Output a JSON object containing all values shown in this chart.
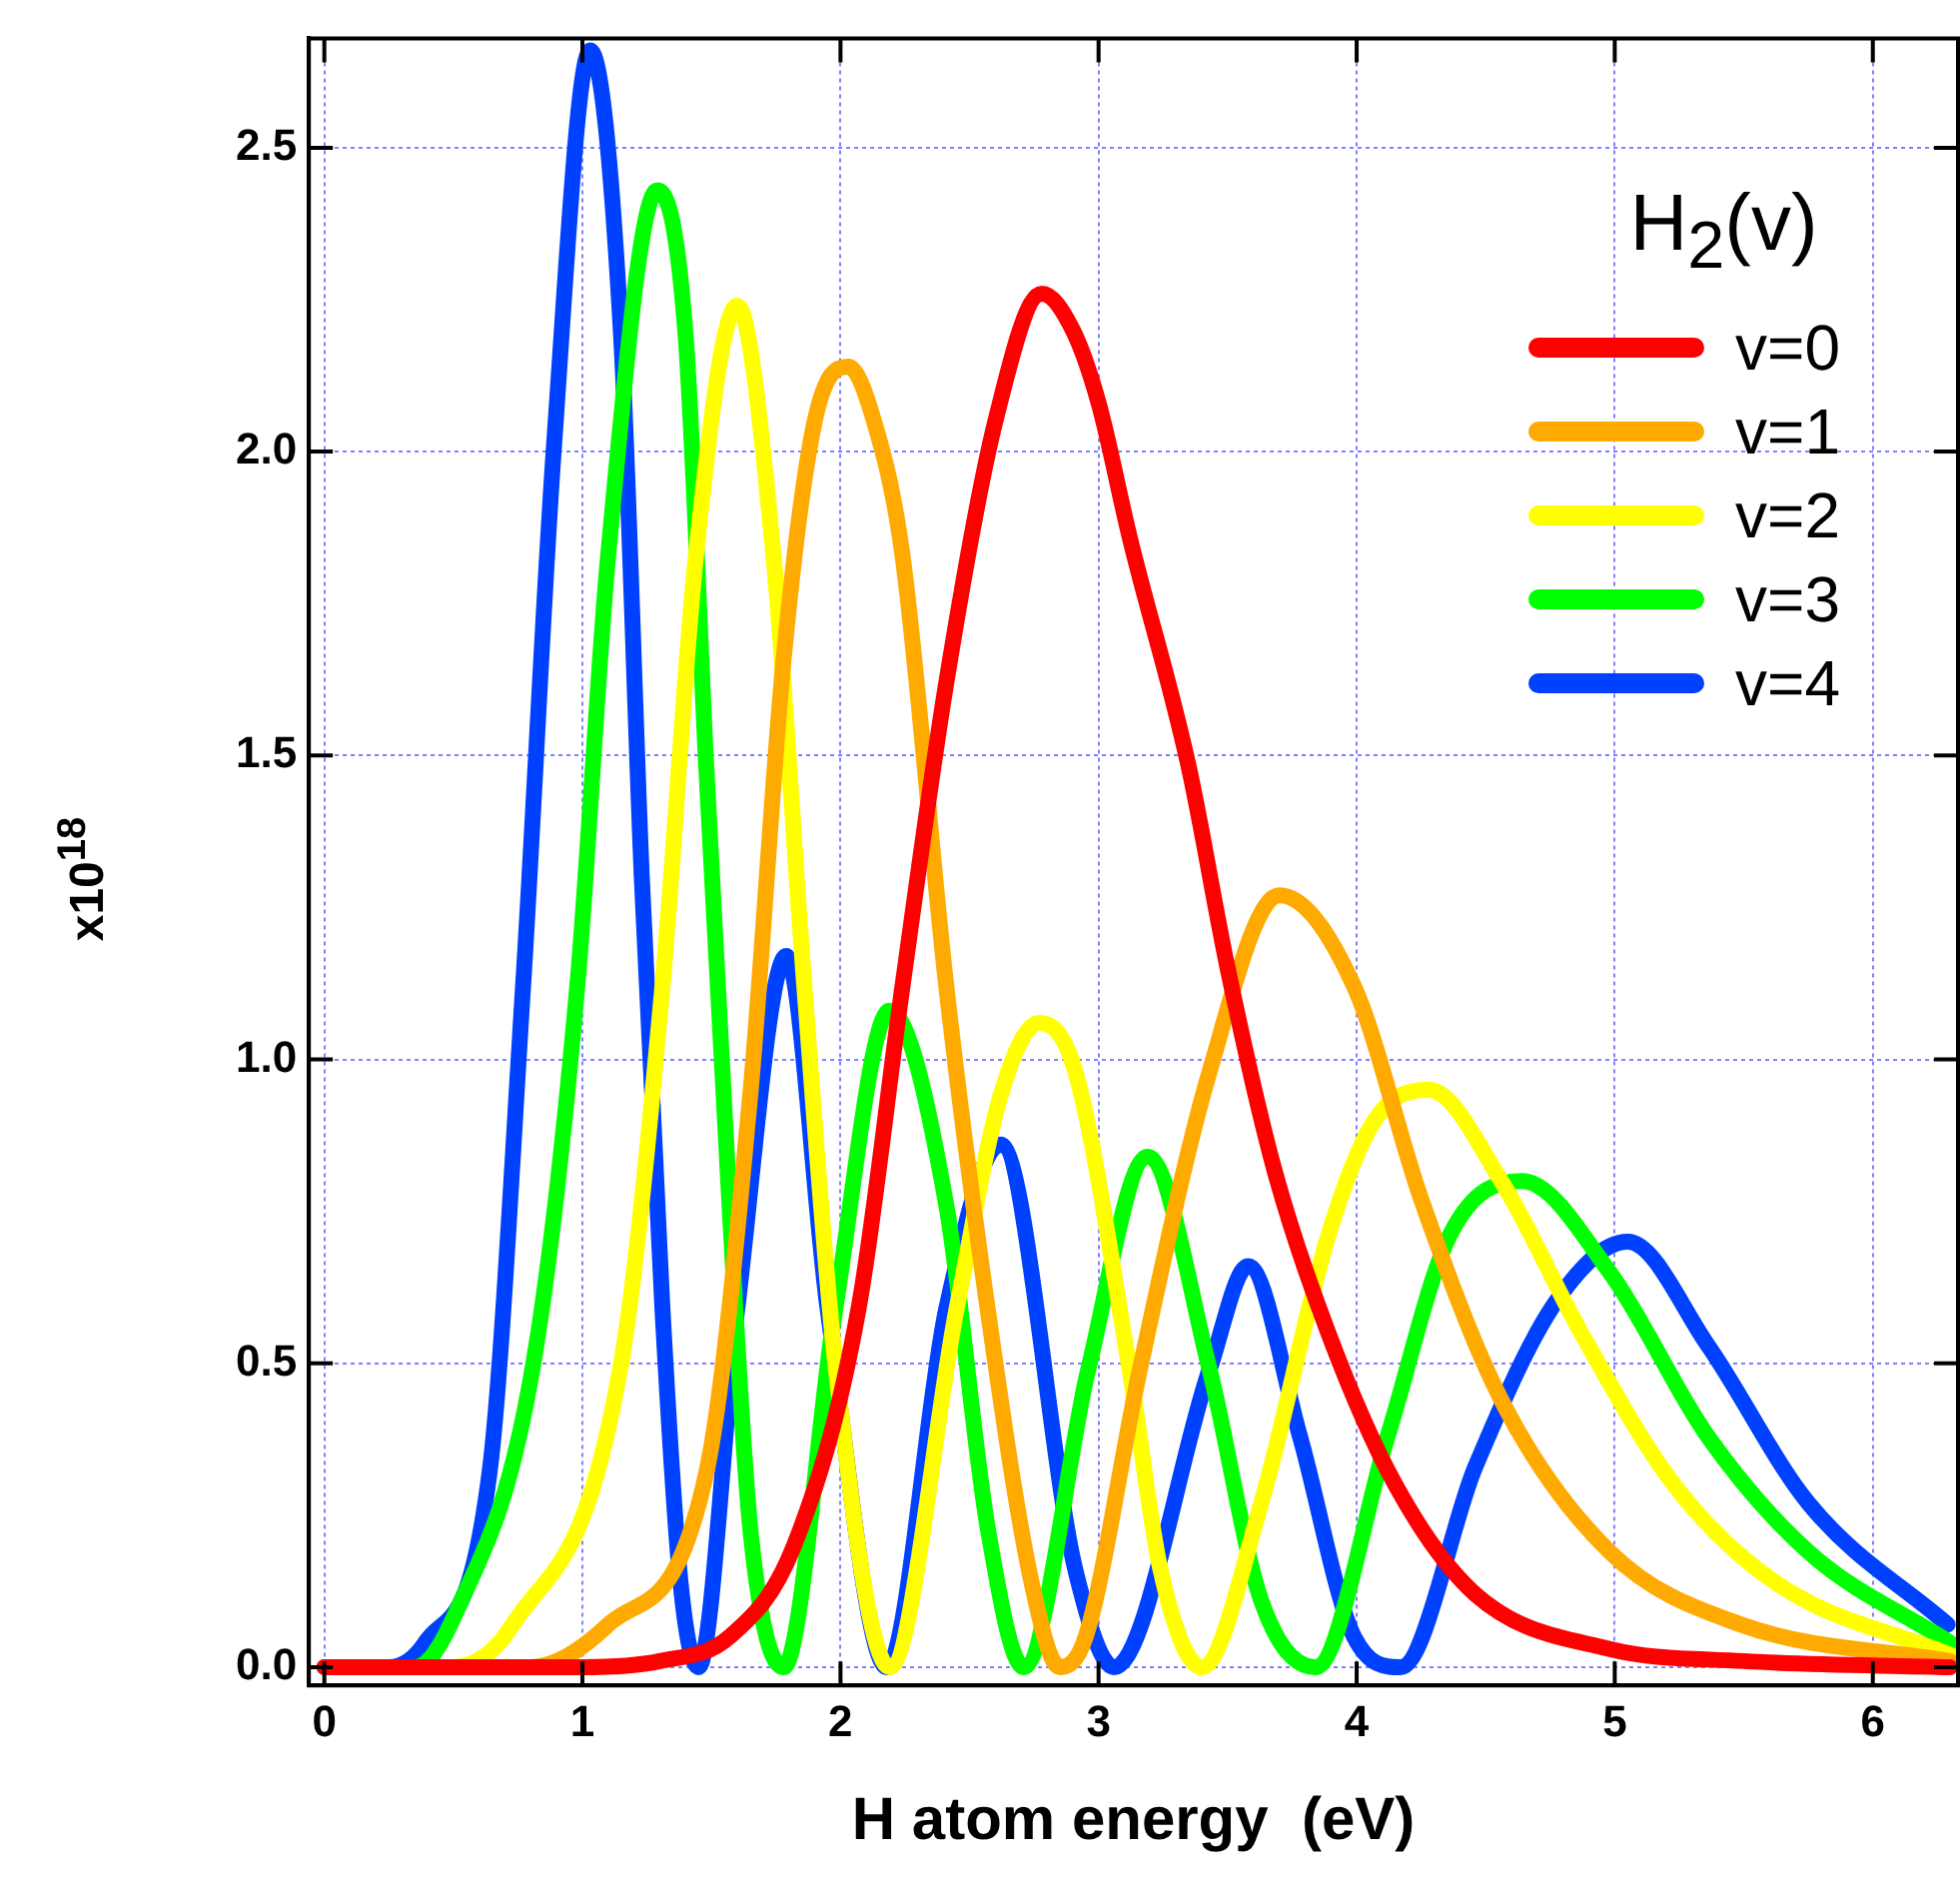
{
  "chart_data": {
    "type": "line",
    "xlabel": "H atom energy  (eV)",
    "ylabel": "x10$^{18}$",
    "legend_title": "H$_{2}$(v)",
    "legend": "top right",
    "grid": true,
    "marker": "none",
    "line_style": "solid",
    "xlim": [
      -0.06,
      6.33
    ],
    "xticks": [
      0,
      1,
      2,
      3,
      4,
      5,
      6
    ],
    "ylim": [
      -0.03,
      2.68
    ],
    "yticks": [
      {
        "value": 0,
        "label": "0.0"
      },
      {
        "value": 0.5,
        "label": "0.5"
      },
      {
        "value": 1,
        "label": "1.0"
      },
      {
        "value": 1.5,
        "label": "1.5"
      },
      {
        "value": 2,
        "label": "2.0"
      },
      {
        "value": 2.5,
        "label": "2.5"
      }
    ],
    "series": [
      {
        "name": "v=0",
        "color": "#ff0000",
        "x": [
          0,
          1.0,
          1.3,
          1.57,
          1.82,
          2.07,
          2.24,
          2.41,
          2.6,
          2.78,
          2.9,
          3.0,
          3.12,
          3.35,
          3.5,
          3.68,
          3.89,
          4.15,
          4.46,
          4.98,
          5.5,
          6.3
        ],
        "values": [
          0,
          0,
          0.01,
          0.05,
          0.2,
          0.59,
          1.12,
          1.62,
          2.05,
          2.26,
          2.2,
          2.08,
          1.86,
          1.48,
          1.15,
          0.82,
          0.55,
          0.3,
          0.12,
          0.03,
          0.01,
          0
        ]
      },
      {
        "name": "v=1",
        "color": "#ffaa00",
        "x": [
          0,
          0.8,
          1.1,
          1.48,
          1.65,
          1.78,
          1.9,
          2.03,
          2.13,
          2.24,
          2.41,
          2.57,
          2.74,
          2.85,
          2.95,
          3.16,
          3.43,
          3.7,
          3.99,
          4.25,
          4.56,
          4.98,
          5.49,
          6.3
        ],
        "values": [
          0,
          0,
          0.07,
          0.32,
          0.94,
          1.66,
          2.05,
          2.14,
          2.05,
          1.83,
          1.12,
          0.59,
          0.14,
          0,
          0.05,
          0.49,
          0.98,
          1.27,
          1.12,
          0.77,
          0.44,
          0.19,
          0.07,
          0.01
        ]
      },
      {
        "name": "v=2",
        "color": "#ffff00",
        "x": [
          0,
          0.5,
          0.73,
          1.15,
          1.31,
          1.44,
          1.6,
          1.74,
          1.86,
          1.98,
          2.19,
          2.45,
          2.62,
          2.77,
          2.91,
          3.12,
          3.24,
          3.4,
          3.63,
          3.89,
          4.07,
          4.28,
          4.56,
          4.87,
          5.23,
          5.62,
          6.3
        ],
        "values": [
          0,
          0,
          0.07,
          0.5,
          1.12,
          1.83,
          2.24,
          1.83,
          1.12,
          0.5,
          0,
          0.59,
          0.94,
          1.06,
          0.98,
          0.49,
          0.16,
          0,
          0.27,
          0.71,
          0.9,
          0.95,
          0.8,
          0.55,
          0.3,
          0.14,
          0.02
        ]
      },
      {
        "name": "v=3",
        "color": "#00ff00",
        "x": [
          0,
          0.35,
          0.51,
          0.81,
          0.98,
          1.1,
          1.29,
          1.4,
          1.48,
          1.57,
          1.65,
          1.78,
          1.98,
          2.19,
          2.41,
          2.57,
          2.71,
          2.96,
          3.19,
          3.43,
          3.63,
          3.84,
          4.12,
          4.36,
          4.64,
          4.98,
          5.36,
          5.75,
          6.3
        ],
        "values": [
          0,
          0,
          0.09,
          0.5,
          1.12,
          1.83,
          2.43,
          2.19,
          1.48,
          0.76,
          0.23,
          0,
          0.59,
          1.08,
          0.76,
          0.23,
          0,
          0.49,
          0.84,
          0.49,
          0.11,
          0,
          0.38,
          0.71,
          0.8,
          0.65,
          0.38,
          0.19,
          0.04
        ]
      },
      {
        "name": "v=4",
        "color": "#0040ff",
        "x": [
          0,
          0.25,
          0.39,
          0.64,
          0.77,
          0.89,
          1.03,
          1.15,
          1.23,
          1.31,
          1.38,
          1.45,
          1.6,
          1.79,
          1.95,
          2.18,
          2.41,
          2.62,
          2.91,
          3.06,
          3.43,
          3.58,
          3.78,
          3.99,
          4.17,
          4.46,
          4.77,
          5.05,
          5.36,
          5.75,
          6.29
        ],
        "values": [
          0,
          0,
          0.04,
          0.32,
          1.12,
          2.01,
          2.66,
          2.19,
          1.3,
          0.59,
          0.14,
          0,
          0.59,
          1.17,
          0.59,
          0,
          0.59,
          0.86,
          0.16,
          0,
          0.49,
          0.66,
          0.38,
          0.05,
          0,
          0.33,
          0.6,
          0.7,
          0.53,
          0.27,
          0.07
        ]
      }
    ]
  }
}
